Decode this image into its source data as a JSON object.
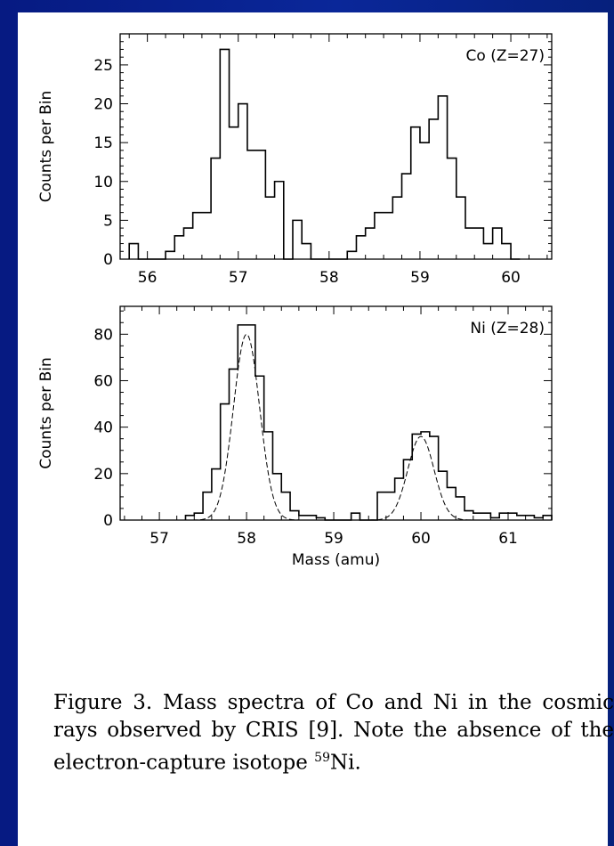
{
  "chart_data": [
    {
      "type": "histogram",
      "label": "Co (Z=27)",
      "ylabel": "Counts per Bin",
      "xlabel": "",
      "xlim": [
        55.7,
        60.45
      ],
      "ylim": [
        0,
        29
      ],
      "xticks": [
        "56",
        "57",
        "58",
        "59",
        "60"
      ],
      "yticks": [
        "0",
        "5",
        "10",
        "15",
        "20",
        "25"
      ],
      "bin_width": 0.1,
      "series": [
        {
          "bins_start": [
            55.8,
            55.9,
            56.0,
            56.1,
            56.2,
            56.3,
            56.4,
            56.5,
            56.6,
            56.7,
            56.8,
            56.9,
            57.0,
            57.1,
            57.2,
            57.3,
            57.4,
            57.5,
            57.6,
            57.7,
            57.8,
            57.9,
            58.0,
            58.1,
            58.2,
            58.3,
            58.4,
            58.5,
            58.6,
            58.7,
            58.8,
            58.9,
            59.0,
            59.1,
            59.2,
            59.3,
            59.4,
            59.5,
            59.6,
            59.7,
            59.8,
            59.9,
            60.0
          ],
          "counts": [
            2,
            0,
            0,
            0,
            1,
            3,
            4,
            6,
            6,
            13,
            27,
            17,
            20,
            14,
            14,
            8,
            10,
            0,
            5,
            2,
            0,
            0,
            0,
            0,
            1,
            3,
            4,
            6,
            6,
            8,
            11,
            17,
            15,
            18,
            21,
            13,
            8,
            4,
            4,
            2,
            4,
            2,
            0
          ]
        }
      ]
    },
    {
      "type": "histogram",
      "label": "Ni (Z=28)",
      "ylabel": "Counts per Bin",
      "xlabel": "Mass (amu)",
      "xlim": [
        56.55,
        61.5
      ],
      "ylim": [
        0,
        92
      ],
      "xticks": [
        "57",
        "58",
        "59",
        "60",
        "61"
      ],
      "yticks": [
        "0",
        "20",
        "40",
        "60",
        "80"
      ],
      "bin_width": 0.1,
      "series": [
        {
          "bins_start": [
            57.3,
            57.4,
            57.5,
            57.6,
            57.7,
            57.8,
            57.9,
            58.0,
            58.1,
            58.2,
            58.3,
            58.4,
            58.5,
            58.6,
            58.7,
            58.8,
            58.9,
            59.0,
            59.1,
            59.2,
            59.3,
            59.4,
            59.5,
            59.6,
            59.7,
            59.8,
            59.9,
            60.0,
            60.1,
            60.2,
            60.3,
            60.4,
            60.5,
            60.6,
            60.7,
            60.8,
            60.9,
            61.0,
            61.1,
            61.2,
            61.3,
            61.4
          ],
          "counts": [
            2,
            3,
            12,
            22,
            50,
            65,
            84,
            84,
            62,
            38,
            20,
            12,
            4,
            2,
            2,
            1,
            0,
            0,
            0,
            3,
            0,
            0,
            12,
            12,
            18,
            26,
            37,
            38,
            36,
            21,
            14,
            10,
            4,
            3,
            3,
            1,
            3,
            3,
            2,
            2,
            1,
            2
          ]
        }
      ],
      "fit": {
        "type": "gaussian",
        "peaks": [
          {
            "mean": 58.0,
            "sigma": 0.15,
            "amplitude": 80
          },
          {
            "mean": 60.0,
            "sigma": 0.15,
            "amplitude": 36
          }
        ]
      }
    }
  ],
  "caption": {
    "prefix": "Figure 3.  Mass spectra of Co and Ni in the cosmic rays observed by CRIS [9].  Note the absence of the electron-capture isotope ",
    "sup": "59",
    "suffix": "Ni."
  }
}
